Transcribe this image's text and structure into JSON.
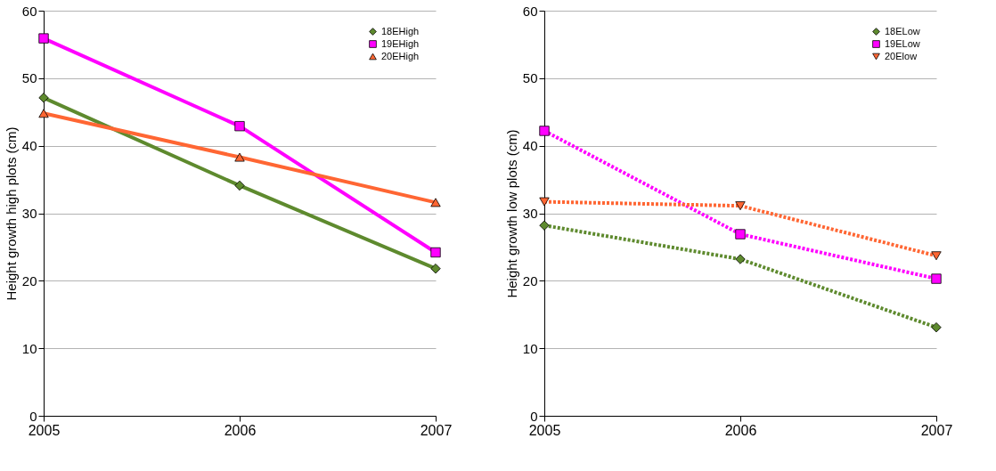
{
  "chart_data": [
    {
      "type": "line",
      "ylabel": "Height growth high plots (cm)",
      "x": [
        2005,
        2006,
        2007
      ],
      "xlim": [
        2005,
        2007
      ],
      "xticks": [
        2005,
        2006,
        2007
      ],
      "ylim": [
        0,
        60
      ],
      "yticks": [
        0,
        10,
        20,
        30,
        40,
        50,
        60
      ],
      "grid": "y",
      "legend": "top right",
      "line_style": "solid",
      "series": [
        {
          "name": "18EHigh",
          "color": "#5e8a2e",
          "marker": "diamond",
          "values": [
            47.1,
            34.1,
            21.8
          ]
        },
        {
          "name": "19EHigh",
          "color": "#ff00ff",
          "marker": "square",
          "values": [
            55.9,
            42.9,
            24.2
          ]
        },
        {
          "name": "20EHigh",
          "color": "#ff6633",
          "marker": "triangle",
          "values": [
            44.8,
            38.3,
            31.6
          ]
        }
      ]
    },
    {
      "type": "line",
      "ylabel": "Height growth low plots (cm)",
      "x": [
        2005,
        2006,
        2007
      ],
      "xlim": [
        2005,
        2007
      ],
      "xticks": [
        2005,
        2006,
        2007
      ],
      "ylim": [
        0,
        60
      ],
      "yticks": [
        0,
        10,
        20,
        30,
        40,
        50,
        60
      ],
      "grid": "y",
      "legend": "top right",
      "line_style": "dotted",
      "series": [
        {
          "name": "18ELow",
          "color": "#5e8a2e",
          "marker": "diamond",
          "values": [
            28.2,
            23.2,
            13.1
          ]
        },
        {
          "name": "19ELow",
          "color": "#ff00ff",
          "marker": "square",
          "values": [
            42.2,
            26.9,
            20.3
          ]
        },
        {
          "name": "20Elow",
          "color": "#ff6633",
          "marker": "triangle-down",
          "values": [
            31.7,
            31.1,
            23.7
          ]
        }
      ]
    }
  ]
}
